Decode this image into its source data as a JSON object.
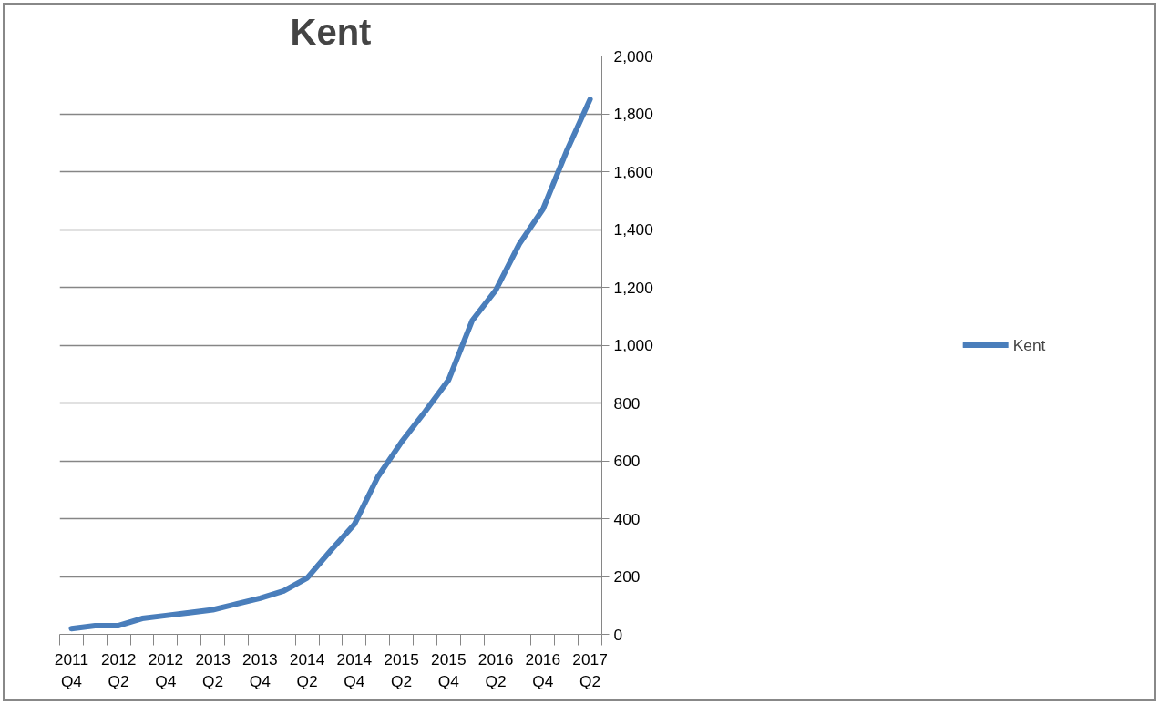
{
  "chart_data": {
    "type": "line",
    "title": "Kent",
    "categories": [
      "2011\nQ4",
      null,
      "2012\nQ2",
      null,
      "2012\nQ4",
      null,
      "2013\nQ2",
      null,
      "2013\nQ4",
      null,
      "2014\nQ2",
      null,
      "2014\nQ4",
      null,
      "2015\nQ2",
      null,
      "2015\nQ4",
      null,
      "2016\nQ2",
      null,
      "2016\nQ4",
      null,
      "2017\nQ2"
    ],
    "series": [
      {
        "name": "Kent",
        "color": "#4a7ebb",
        "values": [
          20,
          30,
          30,
          55,
          65,
          75,
          85,
          105,
          125,
          150,
          195,
          290,
          380,
          545,
          665,
          770,
          880,
          1085,
          1190,
          1350,
          1470,
          1670,
          1850
        ]
      }
    ],
    "ylim": [
      0,
      2000
    ],
    "yticks": [
      {
        "value": 0,
        "label": "0"
      },
      {
        "value": 200,
        "label": "200"
      },
      {
        "value": 400,
        "label": "400"
      },
      {
        "value": 600,
        "label": "600"
      },
      {
        "value": 800,
        "label": "800"
      },
      {
        "value": 1000,
        "label": "1,000"
      },
      {
        "value": 1200,
        "label": "1,200"
      },
      {
        "value": 1400,
        "label": "1,400"
      },
      {
        "value": 1600,
        "label": "1,600"
      },
      {
        "value": 1800,
        "label": "1,800"
      },
      {
        "value": 2000,
        "label": "2,000"
      }
    ],
    "grid": "y",
    "legend": "right",
    "marker": "none",
    "line_style": "solid"
  }
}
